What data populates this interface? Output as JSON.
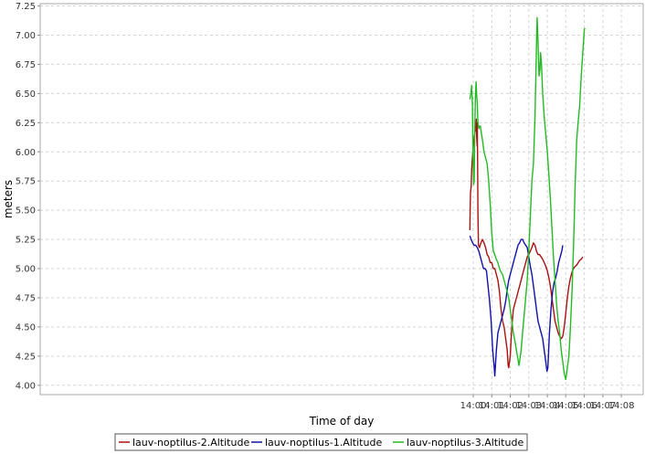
{
  "chart_data": {
    "type": "line",
    "title": "",
    "xlabel": "Time of day",
    "ylabel": "meters",
    "grid": true,
    "legend_position": "bottom",
    "xlim": [
      13.61,
      14.153
    ],
    "ylim": [
      3.92,
      7.27
    ],
    "x_ticks": [
      {
        "value": 14.0,
        "label": "14:00"
      },
      {
        "value": 14.0167,
        "label": "14:01"
      },
      {
        "value": 14.0333,
        "label": "14:02"
      },
      {
        "value": 14.05,
        "label": "14:03"
      },
      {
        "value": 14.0667,
        "label": "14:04"
      },
      {
        "value": 14.0833,
        "label": "14:05"
      },
      {
        "value": 14.1,
        "label": "14:06"
      },
      {
        "value": 14.1167,
        "label": "14:07"
      },
      {
        "value": 14.1333,
        "label": "14:08"
      }
    ],
    "y_ticks": [
      {
        "value": 4.0,
        "label": "4.00"
      },
      {
        "value": 4.25,
        "label": "4.25"
      },
      {
        "value": 4.5,
        "label": "4.50"
      },
      {
        "value": 4.75,
        "label": "4.75"
      },
      {
        "value": 5.0,
        "label": "5.00"
      },
      {
        "value": 5.25,
        "label": "5.25"
      },
      {
        "value": 5.5,
        "label": "5.50"
      },
      {
        "value": 5.75,
        "label": "5.75"
      },
      {
        "value": 6.0,
        "label": "6.00"
      },
      {
        "value": 6.25,
        "label": "6.25"
      },
      {
        "value": 6.5,
        "label": "6.50"
      },
      {
        "value": 6.75,
        "label": "6.75"
      },
      {
        "value": 7.0,
        "label": "7.00"
      },
      {
        "value": 7.25,
        "label": "7.25"
      }
    ],
    "series": [
      {
        "name": "lauv-noptilus-2.Altitude",
        "color": "#aa1111",
        "points": [
          [
            13.9969,
            5.33
          ],
          [
            13.9972,
            5.5
          ],
          [
            13.9975,
            5.65
          ],
          [
            13.9981,
            5.7
          ],
          [
            13.9986,
            5.85
          ],
          [
            13.9992,
            5.95
          ],
          [
            14.0,
            6.05
          ],
          [
            14.0008,
            6.12
          ],
          [
            14.0017,
            6.18
          ],
          [
            14.0022,
            6.25
          ],
          [
            14.0025,
            6.18
          ],
          [
            14.0028,
            6.28
          ],
          [
            14.0031,
            6.12
          ],
          [
            14.0035,
            6.05
          ],
          [
            14.0036,
            6.25
          ],
          [
            14.0039,
            5.9
          ],
          [
            14.0042,
            5.5
          ],
          [
            14.0047,
            5.2
          ],
          [
            14.0056,
            5.18
          ],
          [
            14.0069,
            5.22
          ],
          [
            14.0083,
            5.25
          ],
          [
            14.0097,
            5.22
          ],
          [
            14.0111,
            5.18
          ],
          [
            14.0125,
            5.12
          ],
          [
            14.0139,
            5.1
          ],
          [
            14.0153,
            5.05
          ],
          [
            14.0167,
            5.05
          ],
          [
            14.0181,
            5.0
          ],
          [
            14.0194,
            5.0
          ],
          [
            14.0208,
            4.95
          ],
          [
            14.0222,
            4.9
          ],
          [
            14.0236,
            4.8
          ],
          [
            14.025,
            4.65
          ],
          [
            14.0264,
            4.55
          ],
          [
            14.0278,
            4.5
          ],
          [
            14.0292,
            4.4
          ],
          [
            14.0306,
            4.3
          ],
          [
            14.0314,
            4.17
          ],
          [
            14.0319,
            4.15
          ],
          [
            14.0333,
            4.25
          ],
          [
            14.0347,
            4.5
          ],
          [
            14.0361,
            4.65
          ],
          [
            14.0375,
            4.7
          ],
          [
            14.0389,
            4.75
          ],
          [
            14.0403,
            4.8
          ],
          [
            14.0417,
            4.85
          ],
          [
            14.0431,
            4.9
          ],
          [
            14.0444,
            4.95
          ],
          [
            14.0458,
            5.0
          ],
          [
            14.0472,
            5.05
          ],
          [
            14.0486,
            5.1
          ],
          [
            14.05,
            5.12
          ],
          [
            14.0514,
            5.15
          ],
          [
            14.0528,
            5.18
          ],
          [
            14.0542,
            5.22
          ],
          [
            14.0556,
            5.2
          ],
          [
            14.0569,
            5.15
          ],
          [
            14.0583,
            5.12
          ],
          [
            14.0597,
            5.12
          ],
          [
            14.0611,
            5.1
          ],
          [
            14.0625,
            5.08
          ],
          [
            14.0639,
            5.05
          ],
          [
            14.0653,
            5.02
          ],
          [
            14.0667,
            4.98
          ],
          [
            14.0681,
            4.92
          ],
          [
            14.0694,
            4.85
          ],
          [
            14.0708,
            4.75
          ],
          [
            14.0722,
            4.65
          ],
          [
            14.0736,
            4.55
          ],
          [
            14.075,
            4.5
          ],
          [
            14.0764,
            4.45
          ],
          [
            14.0778,
            4.42
          ],
          [
            14.0792,
            4.4
          ],
          [
            14.0806,
            4.42
          ],
          [
            14.0819,
            4.5
          ],
          [
            14.0833,
            4.62
          ],
          [
            14.0847,
            4.75
          ],
          [
            14.0861,
            4.85
          ],
          [
            14.0875,
            4.92
          ],
          [
            14.0889,
            4.97
          ],
          [
            14.0903,
            5.0
          ],
          [
            14.0917,
            5.02
          ],
          [
            14.0931,
            5.03
          ],
          [
            14.0944,
            5.05
          ],
          [
            14.0958,
            5.07
          ],
          [
            14.0972,
            5.08
          ],
          [
            14.0986,
            5.1
          ]
        ]
      },
      {
        "name": "lauv-noptilus-1.Altitude",
        "color": "#1111aa",
        "points": [
          [
            13.9969,
            5.28
          ],
          [
            13.9981,
            5.25
          ],
          [
            13.9994,
            5.22
          ],
          [
            14.0008,
            5.2
          ],
          [
            14.0022,
            5.2
          ],
          [
            14.0036,
            5.18
          ],
          [
            14.005,
            5.15
          ],
          [
            14.0064,
            5.1
          ],
          [
            14.0078,
            5.05
          ],
          [
            14.0092,
            5.0
          ],
          [
            14.0106,
            5.0
          ],
          [
            14.0119,
            4.98
          ],
          [
            14.0133,
            4.85
          ],
          [
            14.0147,
            4.72
          ],
          [
            14.0161,
            4.55
          ],
          [
            14.0175,
            4.3
          ],
          [
            14.0189,
            4.15
          ],
          [
            14.0194,
            4.08
          ],
          [
            14.0208,
            4.3
          ],
          [
            14.0222,
            4.45
          ],
          [
            14.0236,
            4.5
          ],
          [
            14.025,
            4.55
          ],
          [
            14.0264,
            4.6
          ],
          [
            14.0278,
            4.65
          ],
          [
            14.0292,
            4.72
          ],
          [
            14.0306,
            4.82
          ],
          [
            14.0319,
            4.9
          ],
          [
            14.0333,
            4.95
          ],
          [
            14.0347,
            5.0
          ],
          [
            14.0361,
            5.05
          ],
          [
            14.0375,
            5.1
          ],
          [
            14.0389,
            5.15
          ],
          [
            14.0403,
            5.2
          ],
          [
            14.0417,
            5.22
          ],
          [
            14.0431,
            5.25
          ],
          [
            14.0444,
            5.25
          ],
          [
            14.0458,
            5.22
          ],
          [
            14.0472,
            5.2
          ],
          [
            14.0486,
            5.18
          ],
          [
            14.05,
            5.1
          ],
          [
            14.0514,
            5.02
          ],
          [
            14.0528,
            4.95
          ],
          [
            14.0542,
            4.85
          ],
          [
            14.0556,
            4.75
          ],
          [
            14.0569,
            4.65
          ],
          [
            14.0583,
            4.55
          ],
          [
            14.0597,
            4.5
          ],
          [
            14.0611,
            4.45
          ],
          [
            14.0625,
            4.4
          ],
          [
            14.0639,
            4.3
          ],
          [
            14.0653,
            4.2
          ],
          [
            14.0664,
            4.12
          ],
          [
            14.0672,
            4.15
          ],
          [
            14.0686,
            4.45
          ],
          [
            14.07,
            4.65
          ],
          [
            14.0714,
            4.8
          ],
          [
            14.0728,
            4.88
          ],
          [
            14.0742,
            4.92
          ],
          [
            14.0756,
            4.98
          ],
          [
            14.0769,
            5.05
          ],
          [
            14.0783,
            5.1
          ],
          [
            14.0797,
            5.15
          ],
          [
            14.0806,
            5.2
          ]
        ]
      },
      {
        "name": "lauv-noptilus-3.Altitude",
        "color": "#22bb22",
        "points": [
          [
            13.9969,
            6.45
          ],
          [
            13.9978,
            6.5
          ],
          [
            13.9986,
            6.57
          ],
          [
            13.9992,
            6.4
          ],
          [
            13.9997,
            6.0
          ],
          [
            14.0003,
            5.72
          ],
          [
            14.0008,
            5.75
          ],
          [
            14.0014,
            6.2
          ],
          [
            14.0019,
            6.45
          ],
          [
            14.0025,
            6.6
          ],
          [
            14.0031,
            6.48
          ],
          [
            14.0036,
            6.42
          ],
          [
            14.0042,
            6.25
          ],
          [
            14.005,
            6.2
          ],
          [
            14.0056,
            6.22
          ],
          [
            14.0064,
            6.22
          ],
          [
            14.0075,
            6.15
          ],
          [
            14.0086,
            6.08
          ],
          [
            14.0097,
            6.0
          ],
          [
            14.0111,
            5.95
          ],
          [
            14.0125,
            5.9
          ],
          [
            14.0139,
            5.75
          ],
          [
            14.0153,
            5.55
          ],
          [
            14.0167,
            5.3
          ],
          [
            14.0181,
            5.15
          ],
          [
            14.0194,
            5.12
          ],
          [
            14.0208,
            5.08
          ],
          [
            14.0222,
            5.05
          ],
          [
            14.0236,
            5.0
          ],
          [
            14.025,
            4.97
          ],
          [
            14.0264,
            4.95
          ],
          [
            14.0278,
            4.9
          ],
          [
            14.0292,
            4.85
          ],
          [
            14.0306,
            4.8
          ],
          [
            14.0319,
            4.75
          ],
          [
            14.0333,
            4.65
          ],
          [
            14.0347,
            4.55
          ],
          [
            14.0361,
            4.45
          ],
          [
            14.0375,
            4.38
          ],
          [
            14.0389,
            4.3
          ],
          [
            14.0403,
            4.22
          ],
          [
            14.0411,
            4.17
          ],
          [
            14.0417,
            4.2
          ],
          [
            14.0431,
            4.3
          ],
          [
            14.0444,
            4.45
          ],
          [
            14.0458,
            4.6
          ],
          [
            14.0472,
            4.75
          ],
          [
            14.0486,
            4.9
          ],
          [
            14.05,
            5.15
          ],
          [
            14.0514,
            5.45
          ],
          [
            14.0528,
            5.75
          ],
          [
            14.0542,
            5.9
          ],
          [
            14.0556,
            6.3
          ],
          [
            14.0569,
            6.9
          ],
          [
            14.0575,
            7.15
          ],
          [
            14.0583,
            6.95
          ],
          [
            14.0592,
            6.65
          ],
          [
            14.06,
            6.7
          ],
          [
            14.0606,
            6.85
          ],
          [
            14.0614,
            6.75
          ],
          [
            14.0625,
            6.5
          ],
          [
            14.0639,
            6.3
          ],
          [
            14.0653,
            6.15
          ],
          [
            14.0667,
            6.0
          ],
          [
            14.0681,
            5.8
          ],
          [
            14.0694,
            5.6
          ],
          [
            14.0708,
            5.35
          ],
          [
            14.0722,
            5.1
          ],
          [
            14.0736,
            4.9
          ],
          [
            14.075,
            4.7
          ],
          [
            14.0764,
            4.55
          ],
          [
            14.0778,
            4.45
          ],
          [
            14.0792,
            4.3
          ],
          [
            14.0806,
            4.2
          ],
          [
            14.0819,
            4.1
          ],
          [
            14.0833,
            4.05
          ],
          [
            14.0847,
            4.15
          ],
          [
            14.0861,
            4.25
          ],
          [
            14.0875,
            4.5
          ],
          [
            14.0889,
            4.8
          ],
          [
            14.0903,
            5.2
          ],
          [
            14.0917,
            5.7
          ],
          [
            14.0931,
            6.1
          ],
          [
            14.0944,
            6.25
          ],
          [
            14.0958,
            6.4
          ],
          [
            14.0972,
            6.65
          ],
          [
            14.0986,
            6.85
          ],
          [
            14.1,
            7.05
          ],
          [
            14.1006,
            7.06
          ]
        ]
      }
    ]
  }
}
